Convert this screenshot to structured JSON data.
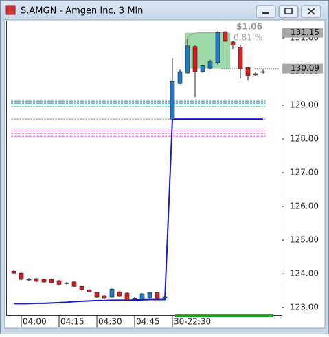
{
  "window": {
    "title": "S.AMGN - Amgen Inc, 3 Min"
  },
  "chart_data": {
    "type": "candlestick",
    "categories": [
      null,
      "04:00",
      null,
      null,
      null,
      null,
      "04:15",
      null,
      null,
      null,
      null,
      "04:30",
      null,
      null,
      null,
      null,
      "04:45",
      null,
      null,
      null,
      null,
      "30-22:30",
      null,
      null,
      null,
      null,
      null,
      null,
      null,
      null,
      null,
      null,
      null,
      null
    ],
    "open": [
      124.08,
      124.02,
      123.84,
      123.86,
      123.84,
      123.84,
      123.8,
      123.73,
      123.76,
      123.63,
      123.53,
      123.45,
      123.35,
      123.31,
      123.47,
      123.43,
      123.27,
      123.24,
      123.29,
      123.45,
      123.27,
      128.59,
      129.65,
      129.96,
      130.74,
      130.0,
      130.1,
      130.27,
      131.18,
      130.88,
      130.73,
      130.12,
      129.94,
      130.0
    ],
    "high": [
      124.1,
      124.04,
      123.88,
      123.88,
      123.86,
      123.86,
      123.82,
      123.76,
      123.78,
      123.65,
      123.55,
      123.47,
      123.37,
      123.57,
      123.49,
      123.45,
      123.31,
      123.43,
      123.47,
      123.47,
      123.33,
      130.39,
      130.06,
      130.96,
      130.78,
      130.22,
      130.35,
      131.2,
      131.2,
      130.92,
      130.78,
      130.14,
      130.0,
      130.06
    ],
    "low": [
      124.0,
      123.82,
      123.8,
      123.76,
      123.74,
      123.71,
      123.67,
      123.69,
      123.61,
      123.51,
      123.45,
      123.29,
      123.25,
      123.29,
      123.31,
      123.2,
      123.2,
      123.22,
      123.27,
      123.25,
      123.25,
      128.57,
      129.63,
      129.94,
      129.24,
      129.96,
      130.06,
      130.2,
      130.88,
      130.67,
      129.8,
      129.73,
      129.86,
      129.94
    ],
    "close": [
      124.02,
      123.84,
      123.84,
      123.78,
      123.76,
      123.73,
      123.69,
      123.71,
      123.63,
      123.53,
      123.47,
      123.31,
      123.27,
      123.55,
      123.33,
      123.22,
      123.27,
      123.41,
      123.45,
      123.27,
      123.31,
      129.71,
      130.0,
      130.76,
      130.0,
      130.18,
      130.31,
      131.16,
      130.9,
      130.78,
      130.08,
      129.88,
      129.9,
      130.0
    ],
    "up_color": "#1f78c8",
    "down_color": "#d42020",
    "line": {
      "color": "#1a1acc",
      "values": [
        123.12,
        123.12,
        123.12,
        123.13,
        123.13,
        123.14,
        123.15,
        123.16,
        123.18,
        123.19,
        123.2,
        123.21,
        123.21,
        123.22,
        123.22,
        123.22,
        123.23,
        123.23,
        123.24,
        123.24,
        123.24,
        128.59,
        128.59,
        128.59,
        128.59,
        128.59,
        128.59,
        128.59,
        128.59,
        128.59,
        128.59,
        128.59,
        128.59,
        128.59
      ]
    },
    "levels": [
      {
        "value": 129.12,
        "color": "#20a090"
      },
      {
        "value": 129.06,
        "color": "#2a7fd0"
      },
      {
        "value": 128.96,
        "color": "#30b050"
      },
      {
        "value": 128.59,
        "color": "#999999"
      },
      {
        "value": 128.24,
        "color": "#e060c0"
      },
      {
        "value": 128.16,
        "color": "#e090d0"
      },
      {
        "value": 128.08,
        "color": "#e060c0"
      }
    ],
    "measure": {
      "low": 130.09,
      "high": 131.15,
      "change": "$1.06",
      "percent": "0.81 %"
    },
    "ylim": [
      122.78,
      131.51
    ],
    "yticks": [
      {
        "value": 123,
        "label": "123.00"
      },
      {
        "value": 124,
        "label": "124.00"
      },
      {
        "value": 125,
        "label": "125.00"
      },
      {
        "value": 126,
        "label": "126.00"
      },
      {
        "value": 127,
        "label": "127.00"
      },
      {
        "value": 128,
        "label": "128.00"
      },
      {
        "value": 129,
        "label": "129.00"
      },
      {
        "value": 130,
        "label": "130.00"
      },
      {
        "value": 131,
        "label": "131.00"
      }
    ]
  }
}
